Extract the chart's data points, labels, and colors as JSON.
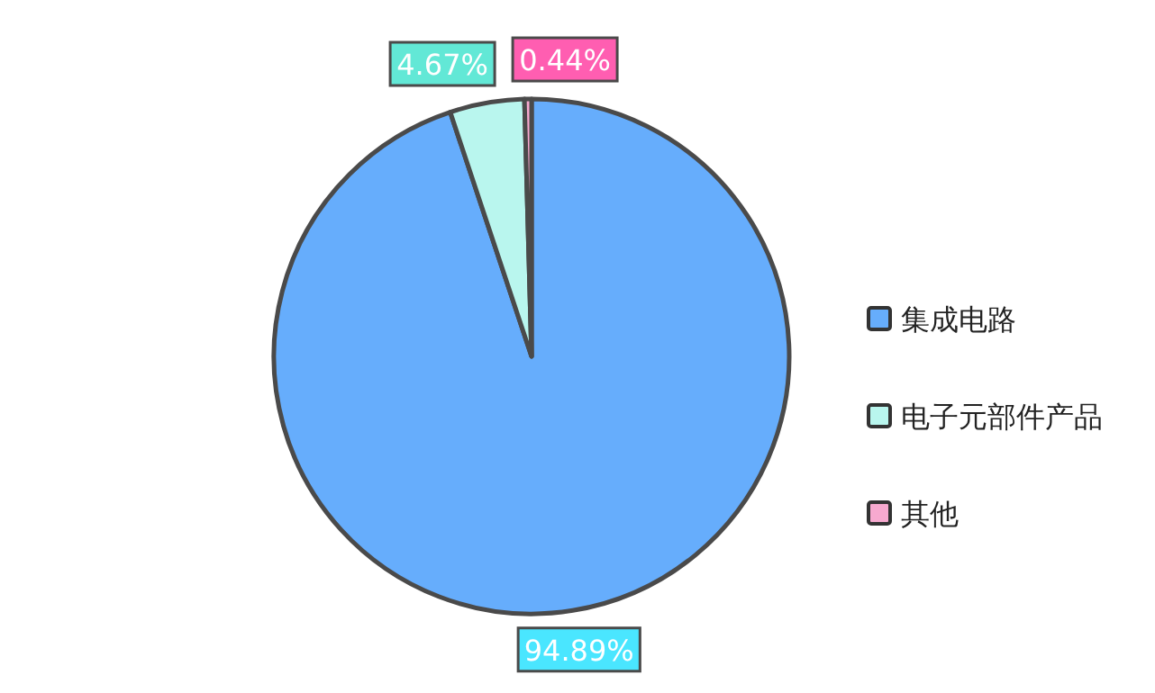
{
  "chart_data": {
    "type": "pie",
    "categories": [
      "集成电路",
      "电子元部件产品",
      "其他"
    ],
    "values": [
      94.89,
      4.67,
      0.44
    ],
    "value_labels": [
      "94.89%",
      "4.67%",
      "0.44%"
    ],
    "colors": [
      "#66adfc",
      "#b9f6ee",
      "#f7a9cf"
    ],
    "legend": "right"
  }
}
